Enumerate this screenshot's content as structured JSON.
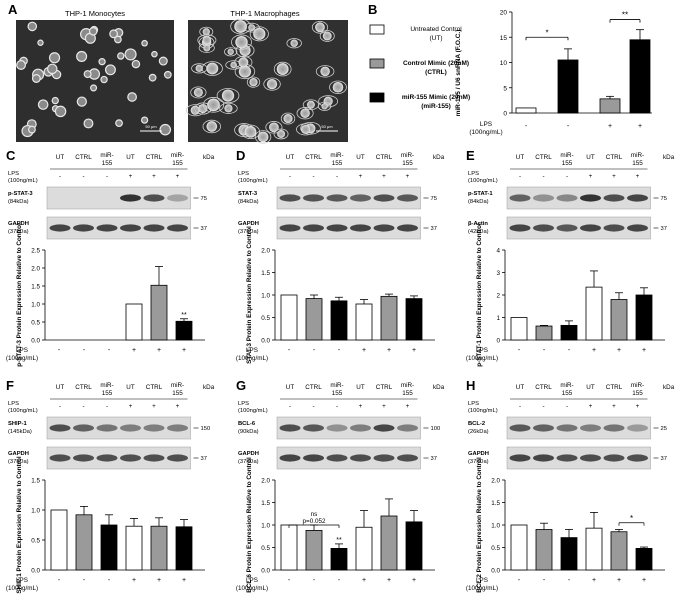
{
  "panel_letters": [
    "A",
    "B",
    "C",
    "D",
    "E",
    "F",
    "G",
    "H"
  ],
  "micrographs": {
    "left_title": "THP-1 Monocytes",
    "right_title": "THP-1 Macrophages",
    "scale_label": "50 μm"
  },
  "legend": {
    "items": [
      {
        "label1": "Untreated Control",
        "label2": "(UT)",
        "color": "#ffffff"
      },
      {
        "label1": "Control Mimic (20nM)",
        "label2": "(CTRL)",
        "color": "#9a9a9a"
      },
      {
        "label1": "miR-155 Mimic (20nM)",
        "label2": "(miR-155)",
        "color": "#000000"
      }
    ]
  },
  "blot_header": {
    "groups": [
      "UT",
      "CTRL",
      "miR-155",
      "UT",
      "CTRL",
      "miR-155"
    ],
    "lps_label": "LPS (100ng/mL)",
    "lps_signs": [
      "-",
      "-",
      "-",
      "+",
      "+",
      "+"
    ],
    "kda": "kDa"
  },
  "x_lps_label": "LPS (100ng/mL)",
  "chart_data": [
    {
      "panel": "B",
      "type": "bar",
      "ylabel": "miR-155 / U6 snRNA (F.O.C.)",
      "ylim": [
        0,
        20
      ],
      "yticks": [
        0,
        5,
        10,
        15,
        20
      ],
      "lps": [
        "-",
        "-",
        "+",
        "+"
      ],
      "colors": [
        "#ffffff",
        "#000000",
        "#9a9a9a",
        "#000000"
      ],
      "values": [
        1,
        10.5,
        2.8,
        14.5
      ],
      "errors": [
        0,
        2.2,
        0.5,
        2.0
      ],
      "annotations": [
        "*",
        "**"
      ]
    },
    {
      "panel": "C",
      "type": "bar",
      "blots": [
        {
          "name": "p-STAT-3",
          "kda": "(84kDa)",
          "marker": "75"
        },
        {
          "name": "GAPDH",
          "kda": "(37kDa)",
          "marker": "37"
        }
      ],
      "ylabel": "p-STAT-3 Protein Expression Relative to Control",
      "ylim": [
        0,
        2.5
      ],
      "yticks": [
        0.0,
        0.5,
        1.0,
        1.5,
        2.0,
        2.5
      ],
      "tickdec": 1,
      "values": [
        0,
        0,
        0,
        1.0,
        1.52,
        0.52
      ],
      "errors": [
        0,
        0,
        0,
        0,
        0.52,
        0.07
      ],
      "labels": [
        "",
        "",
        "",
        "",
        "",
        "**"
      ]
    },
    {
      "panel": "D",
      "type": "bar",
      "blots": [
        {
          "name": "STAT-3",
          "kda": "(84kDa)",
          "marker": "75"
        },
        {
          "name": "GAPDH",
          "kda": "(37kDa)",
          "marker": "37"
        }
      ],
      "ylabel": "STAT-3 Protein Expression Relative to Control",
      "ylim": [
        0,
        2.0
      ],
      "yticks": [
        0.0,
        0.5,
        1.0,
        1.5,
        2.0
      ],
      "tickdec": 1,
      "values": [
        1.0,
        0.92,
        0.87,
        0.8,
        0.97,
        0.92
      ],
      "errors": [
        0,
        0.08,
        0.08,
        0.1,
        0.05,
        0.06
      ],
      "labels": [
        "",
        "",
        "",
        "",
        "",
        ""
      ]
    },
    {
      "panel": "E",
      "type": "bar",
      "blots": [
        {
          "name": "p-STAT-1",
          "kda": "(84kDa)",
          "marker": "75"
        },
        {
          "name": "β-Actin",
          "kda": "(42kDa)",
          "marker": "37"
        }
      ],
      "ylabel": "p-STAT-1 Protein Expression Relative to Control",
      "ylim": [
        0,
        4
      ],
      "yticks": [
        0,
        1,
        2,
        3,
        4
      ],
      "tickdec": 0,
      "values": [
        1.0,
        0.62,
        0.65,
        2.35,
        1.8,
        2.0
      ],
      "errors": [
        0,
        0.03,
        0.2,
        0.72,
        0.3,
        0.32
      ],
      "labels": [
        "",
        "",
        "",
        "",
        "",
        ""
      ]
    },
    {
      "panel": "F",
      "type": "bar",
      "blots": [
        {
          "name": "SHIP-1",
          "kda": "(145kDa)",
          "marker": "150"
        },
        {
          "name": "GAPDH",
          "kda": "(37kDa)",
          "marker": "37"
        }
      ],
      "ylabel": "SHIP-1 Protein Expression Relative to Control",
      "ylim": [
        0,
        1.5
      ],
      "yticks": [
        0.0,
        0.5,
        1.0,
        1.5
      ],
      "tickdec": 1,
      "values": [
        1.0,
        0.92,
        0.75,
        0.73,
        0.73,
        0.72
      ],
      "errors": [
        0,
        0.14,
        0.17,
        0.13,
        0.14,
        0.12
      ],
      "labels": [
        "",
        "",
        "",
        "",
        "",
        ""
      ]
    },
    {
      "panel": "G",
      "type": "bar",
      "blots": [
        {
          "name": "BCL-6",
          "kda": "(90kDa)",
          "marker": "100"
        },
        {
          "name": "GAPDH",
          "kda": "(37kDa)",
          "marker": "37"
        }
      ],
      "ylabel": "BCL-6 Protein Expression Relative to Control",
      "ylim": [
        0,
        2.0
      ],
      "yticks": [
        0.0,
        0.5,
        1.0,
        1.5,
        2.0
      ],
      "tickdec": 1,
      "values": [
        1.0,
        0.88,
        0.48,
        0.95,
        1.2,
        1.07
      ],
      "errors": [
        0,
        0.12,
        0.1,
        0.37,
        0.38,
        0.25
      ],
      "labels": [
        "",
        "",
        "**",
        "",
        "",
        ""
      ],
      "sig": {
        "ns": "ns",
        "p": "p=0.052"
      }
    },
    {
      "panel": "H",
      "type": "bar",
      "blots": [
        {
          "name": "BCL-2",
          "kda": "(26kDa)",
          "marker": "25"
        },
        {
          "name": "GAPDH",
          "kda": "(37kDa)",
          "marker": "37"
        }
      ],
      "ylabel": "BCL-2 Protein Expression Relative to Control",
      "ylim": [
        0,
        2.0
      ],
      "yticks": [
        0.0,
        0.5,
        1.0,
        1.5,
        2.0
      ],
      "tickdec": 1,
      "values": [
        1.0,
        0.9,
        0.72,
        0.93,
        0.85,
        0.48
      ],
      "errors": [
        0,
        0.14,
        0.18,
        0.35,
        0.05,
        0.03
      ],
      "labels": [
        "",
        "",
        "",
        "",
        "",
        ""
      ],
      "star": "*"
    }
  ]
}
